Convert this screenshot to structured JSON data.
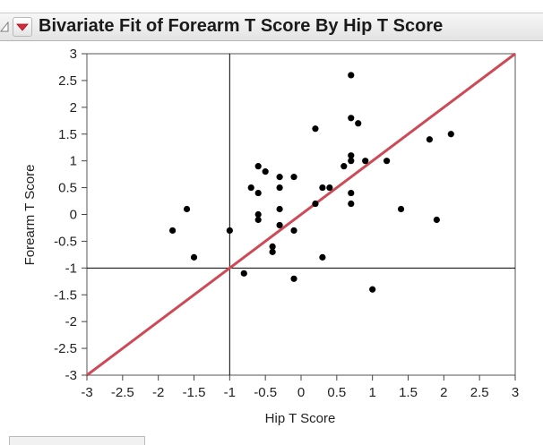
{
  "header": {
    "title": "Bivariate Fit of Forearm T Score By Hip T Score",
    "menu_icon": "red-triangle-menu-icon",
    "collapse_icon": "collapse-triangle-icon"
  },
  "colors": {
    "fit_line": "#cd4a57",
    "points": "#000000",
    "reference_lines": "#000000"
  },
  "chart_data": {
    "type": "scatter",
    "title": "",
    "xlabel": "Hip T Score",
    "ylabel": "Forearm T Score",
    "xlim": [
      -3,
      3
    ],
    "ylim": [
      -3,
      3
    ],
    "xticks": [
      -3,
      -2.5,
      -2,
      -1.5,
      -1,
      -0.5,
      0,
      0.5,
      1,
      1.5,
      2,
      2.5,
      3
    ],
    "yticks": [
      -3,
      -2.5,
      -2,
      -1.5,
      -1,
      -0.5,
      0,
      0.5,
      1,
      1.5,
      2,
      2.5,
      3
    ],
    "xtick_labels": [
      "-3",
      "-2.5",
      "-2",
      "-1.5",
      "-1",
      "-0.5",
      "0",
      "0.5",
      "1",
      "1.5",
      "2",
      "2.5",
      "3"
    ],
    "ytick_labels": [
      "-3",
      "-2.5",
      "-2",
      "-1.5",
      "-1",
      "-0.5",
      "0",
      "0.5",
      "1",
      "1.5",
      "2",
      "2.5",
      "3"
    ],
    "grid": false,
    "reference_lines": {
      "x": -1,
      "y": -1
    },
    "fit_line": {
      "slope": 1,
      "intercept": 0
    },
    "points": [
      {
        "x": 0.7,
        "y": 2.6
      },
      {
        "x": 0.7,
        "y": 1.8
      },
      {
        "x": 0.8,
        "y": 1.7
      },
      {
        "x": 0.2,
        "y": 1.6
      },
      {
        "x": 2.1,
        "y": 1.5
      },
      {
        "x": 1.8,
        "y": 1.4
      },
      {
        "x": 0.7,
        "y": 1.1
      },
      {
        "x": 0.7,
        "y": 1.0
      },
      {
        "x": 0.9,
        "y": 1.0
      },
      {
        "x": 1.2,
        "y": 1.0
      },
      {
        "x": 0.6,
        "y": 0.9
      },
      {
        "x": -0.6,
        "y": 0.9
      },
      {
        "x": -0.5,
        "y": 0.8
      },
      {
        "x": -0.3,
        "y": 0.7
      },
      {
        "x": -0.1,
        "y": 0.7
      },
      {
        "x": -0.7,
        "y": 0.5
      },
      {
        "x": -0.3,
        "y": 0.5
      },
      {
        "x": 0.3,
        "y": 0.5
      },
      {
        "x": 0.4,
        "y": 0.5
      },
      {
        "x": -0.6,
        "y": 0.4
      },
      {
        "x": 0.7,
        "y": 0.4
      },
      {
        "x": 0.2,
        "y": 0.2
      },
      {
        "x": 0.7,
        "y": 0.2
      },
      {
        "x": -1.6,
        "y": 0.1
      },
      {
        "x": -0.3,
        "y": 0.1
      },
      {
        "x": 1.4,
        "y": 0.1
      },
      {
        "x": -0.6,
        "y": 0.0
      },
      {
        "x": -0.6,
        "y": -0.1
      },
      {
        "x": 1.9,
        "y": -0.1
      },
      {
        "x": -0.3,
        "y": -0.2
      },
      {
        "x": -1.8,
        "y": -0.3
      },
      {
        "x": -1.0,
        "y": -0.3
      },
      {
        "x": -0.1,
        "y": -0.3
      },
      {
        "x": -0.4,
        "y": -0.6
      },
      {
        "x": -0.4,
        "y": -0.7
      },
      {
        "x": -1.5,
        "y": -0.8
      },
      {
        "x": 0.3,
        "y": -0.8
      },
      {
        "x": -0.8,
        "y": -1.1
      },
      {
        "x": -0.1,
        "y": -1.2
      },
      {
        "x": 1.0,
        "y": -1.4
      }
    ]
  }
}
